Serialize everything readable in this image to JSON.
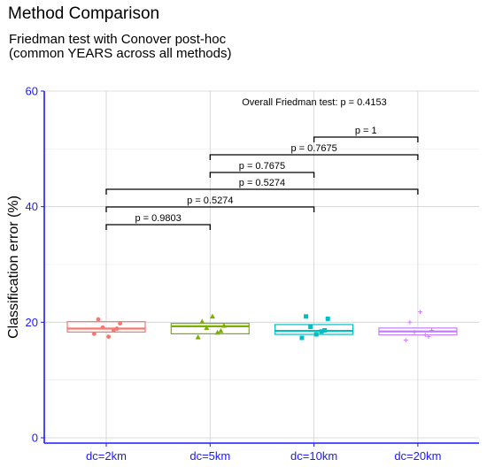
{
  "title": "Method Comparison",
  "subtitle": [
    "Friedman test with Conover post-hoc",
    "(common YEARS across all methods)"
  ],
  "chart_data": {
    "type": "box",
    "title": "Method Comparison",
    "subtitle": "Friedman test with Conover post-hoc (common YEARS across all methods)",
    "xlabel": "",
    "ylabel": "Classification error (%)",
    "ylim": [
      0,
      60
    ],
    "yticks": [
      0,
      20,
      40,
      60
    ],
    "grid": true,
    "legend": "none",
    "categories": [
      "dc=2km",
      "dc=5km",
      "dc=10km",
      "dc=20km"
    ],
    "colors": [
      "#F8766D",
      "#7CAE00",
      "#00BFC4",
      "#C77CFF"
    ],
    "markers": [
      "circle",
      "triangle",
      "square",
      "plus"
    ],
    "boxes": [
      {
        "q1": 18.3,
        "median": 18.9,
        "q3": 20.1
      },
      {
        "q1": 18.0,
        "median": 19.3,
        "q3": 19.8
      },
      {
        "q1": 17.9,
        "median": 18.5,
        "q3": 19.6
      },
      {
        "q1": 17.8,
        "median": 18.4,
        "q3": 19.0
      }
    ],
    "points": [
      [
        18.0,
        18.6,
        19.1,
        19.8,
        20.5,
        17.5,
        18.9
      ],
      [
        17.4,
        18.2,
        19.0,
        19.4,
        20.1,
        21.0,
        18.5
      ],
      [
        17.3,
        18.4,
        19.2,
        20.6,
        21.0,
        17.9,
        18.6
      ],
      [
        16.9,
        17.8,
        18.3,
        18.6,
        20.0,
        21.8,
        17.5
      ]
    ],
    "comparisons": [
      {
        "from": 0,
        "to": 1,
        "label": "p = 0.9803"
      },
      {
        "from": 0,
        "to": 2,
        "label": "p = 0.5274"
      },
      {
        "from": 0,
        "to": 3,
        "label": "p = 0.5274"
      },
      {
        "from": 1,
        "to": 2,
        "label": "p = 0.7675"
      },
      {
        "from": 1,
        "to": 3,
        "label": "p = 0.7675"
      },
      {
        "from": 2,
        "to": 3,
        "label": "p = 1"
      }
    ],
    "overall_test": "Overall Friedman test: p = 0.4153"
  }
}
